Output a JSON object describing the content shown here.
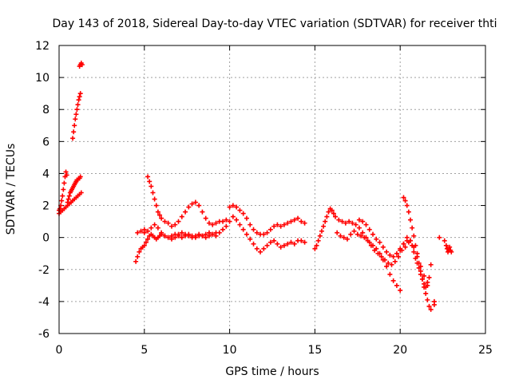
{
  "chart_data": {
    "type": "scatter",
    "title": "Day 143 of 2018, Sidereal Day-to-day VTEC variation (SDTVAR) for receiver thti",
    "xlabel": "GPS time / hours",
    "ylabel": "SDTVAR / TECUs",
    "xlim": [
      0,
      25
    ],
    "ylim": [
      -6,
      12
    ],
    "xticks": [
      0,
      5,
      10,
      15,
      20,
      25
    ],
    "yticks": [
      -6,
      -4,
      -2,
      0,
      2,
      4,
      6,
      8,
      10,
      12
    ],
    "grid": true,
    "legend": "none",
    "marker": "plus",
    "color": "#ff0000",
    "series": [
      {
        "x": [
          0.0,
          0.05,
          0.1,
          0.15,
          0.2,
          0.25,
          0.3,
          0.35,
          0.4,
          0.45,
          0.5,
          0.55,
          0.6,
          0.65,
          0.7,
          0.75,
          0.8,
          0.85,
          0.9,
          0.95,
          1.0,
          1.05,
          1.1,
          1.15,
          1.2,
          1.25,
          0.0,
          0.1,
          0.2,
          0.3,
          0.4,
          0.5,
          0.6,
          0.7,
          0.8,
          0.9,
          1.0,
          1.1,
          1.2,
          1.3,
          0.8,
          0.85,
          0.9,
          0.95,
          1.0,
          1.05,
          1.1,
          1.15,
          1.2,
          1.25,
          1.2,
          1.25,
          1.3,
          1.35
        ],
        "y": [
          1.7,
          1.8,
          2.0,
          2.3,
          2.6,
          3.0,
          3.4,
          3.8,
          4.1,
          3.9,
          2.2,
          2.4,
          2.6,
          2.8,
          2.9,
          3.0,
          3.1,
          3.2,
          3.3,
          3.4,
          3.5,
          3.6,
          3.6,
          3.7,
          3.7,
          3.8,
          1.5,
          1.6,
          1.7,
          1.8,
          1.9,
          2.0,
          2.1,
          2.2,
          2.3,
          2.4,
          2.5,
          2.6,
          2.7,
          2.8,
          6.2,
          6.6,
          7.0,
          7.4,
          7.7,
          8.0,
          8.3,
          8.6,
          8.8,
          9.0,
          10.7,
          10.8,
          10.9,
          10.8
        ]
      },
      {
        "x": [
          4.5,
          4.6,
          4.7,
          4.8,
          4.9,
          5.0,
          5.1,
          5.2,
          5.3,
          5.4,
          5.5,
          5.6,
          5.7,
          5.8,
          5.9,
          6.0,
          6.2,
          6.4,
          6.6,
          6.8,
          7.0,
          7.2,
          7.4,
          7.6,
          7.8,
          8.0,
          8.2,
          8.4,
          8.6,
          8.8,
          9.0,
          9.2,
          9.4,
          9.6,
          9.8,
          10.0,
          10.2,
          10.4,
          10.6,
          10.8,
          11.0,
          11.2,
          11.4,
          11.6,
          11.8,
          12.0,
          12.2,
          12.4,
          12.6,
          12.8,
          13.0,
          13.2,
          13.4,
          13.6,
          13.8,
          14.0,
          14.2,
          14.4
        ],
        "y": [
          -1.5,
          -1.2,
          -0.9,
          -0.7,
          -0.6,
          -0.5,
          -0.3,
          -0.1,
          0.1,
          0.2,
          0.1,
          0.0,
          -0.1,
          0.0,
          0.1,
          0.2,
          0.1,
          0.0,
          0.1,
          0.2,
          0.1,
          0.0,
          0.1,
          0.2,
          0.1,
          0.0,
          0.1,
          0.1,
          0.2,
          0.3,
          0.2,
          0.1,
          0.3,
          0.5,
          0.7,
          1.0,
          1.3,
          1.1,
          0.8,
          0.5,
          0.2,
          -0.1,
          -0.4,
          -0.7,
          -0.9,
          -0.7,
          -0.5,
          -0.3,
          -0.2,
          -0.4,
          -0.6,
          -0.5,
          -0.4,
          -0.3,
          -0.4,
          -0.2,
          -0.2,
          -0.3
        ]
      },
      {
        "x": [
          4.6,
          4.8,
          5.0,
          5.2,
          5.3,
          5.4,
          5.5,
          5.6,
          5.7,
          5.8,
          5.9,
          6.0,
          6.2,
          6.4,
          6.6,
          6.8,
          7.0,
          7.2,
          7.4,
          7.6,
          7.8,
          8.0,
          8.2,
          8.4,
          8.6,
          8.8,
          9.0,
          9.2,
          9.4,
          9.6,
          9.8,
          10.0,
          10.2,
          10.4,
          10.6,
          10.8,
          11.0,
          11.2,
          11.4,
          11.6,
          11.8,
          12.0,
          12.2,
          12.4,
          12.6,
          12.8,
          13.0,
          13.2,
          13.4,
          13.6,
          13.8,
          14.0,
          14.2,
          14.4
        ],
        "y": [
          0.3,
          0.4,
          0.5,
          3.8,
          3.5,
          3.2,
          2.8,
          2.4,
          2.0,
          1.6,
          1.4,
          1.2,
          1.0,
          0.9,
          0.7,
          0.8,
          1.0,
          1.3,
          1.6,
          1.9,
          2.1,
          2.2,
          2.0,
          1.6,
          1.2,
          0.9,
          0.8,
          0.9,
          1.0,
          1.0,
          1.1,
          1.9,
          2.0,
          1.9,
          1.7,
          1.5,
          1.2,
          0.8,
          0.5,
          0.3,
          0.2,
          0.2,
          0.3,
          0.5,
          0.7,
          0.8,
          0.7,
          0.8,
          0.9,
          1.0,
          1.1,
          1.2,
          1.0,
          0.9
        ]
      },
      {
        "x": [
          5.0,
          5.2,
          5.4,
          5.6,
          5.8,
          6.0,
          6.2,
          6.4,
          6.6,
          6.8,
          7.0,
          7.2,
          7.4,
          7.6,
          7.8,
          8.0,
          8.2,
          8.4,
          8.6,
          8.8,
          9.0,
          9.2
        ],
        "y": [
          0.3,
          0.4,
          0.6,
          0.8,
          0.6,
          0.3,
          0.1,
          0.0,
          -0.1,
          0.0,
          0.2,
          0.3,
          0.2,
          0.1,
          0.0,
          0.1,
          0.2,
          0.1,
          0.0,
          0.1,
          0.2,
          0.3
        ]
      },
      {
        "x": [
          15.0,
          15.1,
          15.2,
          15.3,
          15.4,
          15.5,
          15.6,
          15.7,
          15.8,
          15.9,
          16.0,
          16.1,
          16.2,
          16.4,
          16.6,
          16.8,
          17.0,
          17.2,
          17.4,
          17.6,
          17.8,
          18.0,
          18.2,
          18.4,
          18.6,
          18.8,
          19.0,
          19.2,
          19.4,
          19.6,
          19.8,
          20.0,
          16.3,
          16.5,
          16.7,
          16.9,
          17.1,
          17.3,
          17.5,
          17.7,
          17.9,
          18.1,
          18.3,
          18.5,
          18.7,
          18.9,
          19.1,
          19.3,
          19.5,
          19.7,
          19.9,
          20.1,
          20.3,
          20.5
        ],
        "y": [
          -0.7,
          -0.5,
          -0.2,
          0.1,
          0.4,
          0.7,
          1.0,
          1.3,
          1.6,
          1.8,
          1.7,
          1.5,
          1.3,
          1.1,
          1.0,
          0.9,
          1.0,
          0.9,
          0.8,
          0.6,
          0.3,
          0.0,
          -0.3,
          -0.5,
          -0.7,
          -1.0,
          -1.4,
          -1.8,
          -2.3,
          -2.7,
          -3.0,
          -3.3,
          0.3,
          0.1,
          0.0,
          -0.1,
          0.2,
          0.4,
          0.2,
          0.1,
          0.0,
          -0.2,
          -0.5,
          -0.8,
          -1.0,
          -1.2,
          -1.4,
          -1.6,
          -1.7,
          -1.5,
          -1.2,
          -0.8,
          -0.6,
          -0.3
        ]
      },
      {
        "x": [
          17.6,
          17.8,
          18.0,
          18.2,
          18.4,
          18.6,
          18.8,
          19.0,
          19.2,
          19.4,
          19.6,
          19.8,
          20.0,
          20.2,
          20.4
        ],
        "y": [
          1.1,
          1.0,
          0.8,
          0.5,
          0.2,
          -0.1,
          -0.3,
          -0.6,
          -0.9,
          -1.1,
          -1.2,
          -1.0,
          -0.7,
          -0.4,
          -0.2
        ]
      },
      {
        "x": [
          20.2,
          20.3,
          20.4,
          20.5,
          20.6,
          20.7,
          20.8,
          20.9,
          21.0,
          21.1,
          21.2,
          21.3,
          21.4,
          21.5,
          21.6,
          21.7,
          21.8,
          20.6,
          20.7,
          20.8,
          20.9,
          21.0,
          21.1,
          21.2,
          21.3,
          21.4,
          21.5,
          21.6,
          21.7,
          20.0,
          20.2,
          20.4,
          20.6,
          20.8,
          21.0,
          21.2,
          21.4,
          21.6,
          21.8
        ],
        "y": [
          2.5,
          2.3,
          2.0,
          1.6,
          1.1,
          0.6,
          0.1,
          -0.5,
          -1.0,
          -1.6,
          -2.1,
          -2.6,
          -3.1,
          -3.5,
          -3.9,
          -4.3,
          -4.5,
          -0.2,
          -0.5,
          -0.9,
          -1.3,
          -1.6,
          -1.9,
          -2.3,
          -2.6,
          -2.9,
          -3.1,
          -2.8,
          -2.5,
          -0.8,
          -0.4,
          0.0,
          -0.2,
          -0.6,
          -1.2,
          -1.8,
          -2.4,
          -3.0,
          -1.7
        ]
      },
      {
        "x": [
          22.0,
          22.0,
          22.3,
          22.6,
          22.7,
          22.75,
          22.8,
          22.85,
          22.9,
          22.95,
          23.0
        ],
        "y": [
          -4.2,
          -4.0,
          0.0,
          -0.2,
          -0.5,
          -0.7,
          -0.9,
          -0.8,
          -0.6,
          -0.8,
          -0.9
        ]
      }
    ]
  }
}
